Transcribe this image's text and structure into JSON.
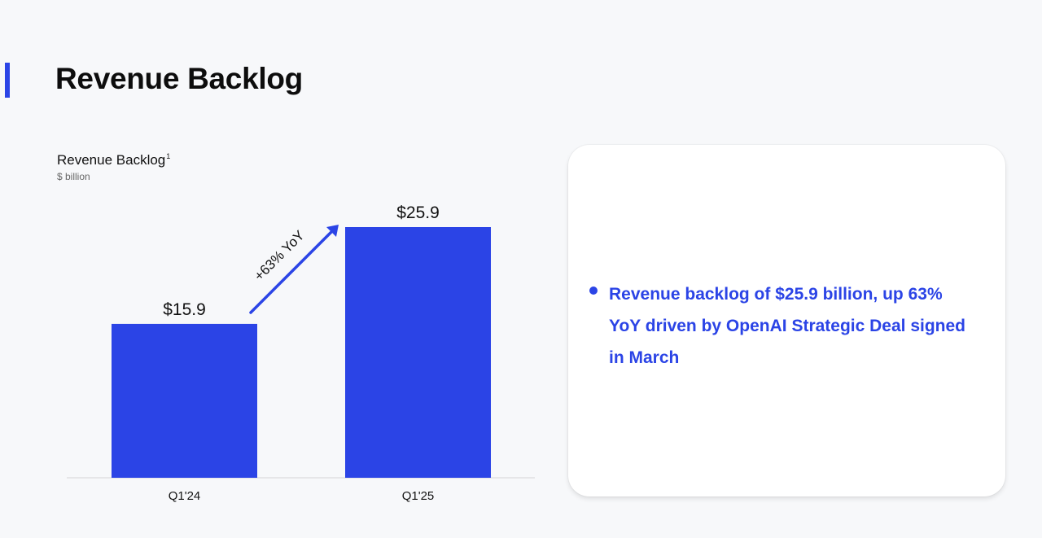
{
  "page": {
    "title": "Revenue Backlog",
    "accent_color": "#2b44e6"
  },
  "chart_data": {
    "type": "bar",
    "title": "Revenue Backlog",
    "title_footnote": "1",
    "subtitle": "$ billion",
    "categories": [
      "Q1'24",
      "Q1'25"
    ],
    "values": [
      15.9,
      25.9
    ],
    "value_labels": [
      "$15.9",
      "$25.9"
    ],
    "bar_color": "#2b44e6",
    "annotation": "+63% YoY",
    "ylim": [
      0,
      25.9
    ],
    "grid": false,
    "legend": "none"
  },
  "card": {
    "bullets": [
      "Revenue backlog of $25.9 billion, up 63% YoY driven by OpenAI Strategic Deal signed in March"
    ]
  }
}
